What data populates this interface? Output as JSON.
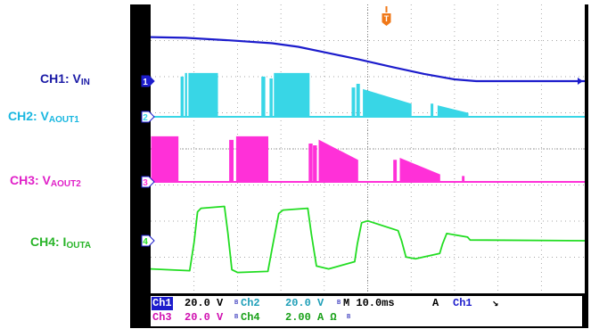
{
  "labels": [
    {
      "main": "CH1: V",
      "sub": "IN",
      "color": "#1a1aa6"
    },
    {
      "main": "CH2: V",
      "sub": "AOUT1",
      "color": "#19b7e0"
    },
    {
      "main": "CH3: V",
      "sub": "AOUT2",
      "color": "#e020c8"
    },
    {
      "main": "CH4: I",
      "sub": "OUTA",
      "color": "#28b428"
    }
  ],
  "status": {
    "ch1": "Ch1",
    "ch1_scale": "20.0 V",
    "ch2": "Ch2",
    "ch2_scale": "20.0 V",
    "ch3": "Ch3",
    "ch3_scale": "20.0 V",
    "ch4": "Ch4",
    "ch4_scale": "2.00 A Ω",
    "bw_mark": "B",
    "timebase": "M 10.0ms",
    "trigger_mode": "A",
    "trigger_source": "Ch1",
    "trigger_slope": "↘"
  },
  "chart_data": {
    "type": "line",
    "x_unit": "ms",
    "x_range": [
      0,
      100
    ],
    "time_per_div_ms": 10,
    "divisions": {
      "x": 10,
      "y": 8
    },
    "grid": true,
    "trigger_marker": "T",
    "colors": {
      "ch1": "#1c1ccc",
      "ch2": "#38d6e6",
      "ch3": "#ff30d8",
      "ch4": "#22dd22"
    },
    "series": [
      {
        "name": "CH1",
        "marker": "1",
        "volts_per_div": 20,
        "points": [
          [
            0,
            1.22
          ],
          [
            8,
            1.2
          ],
          [
            18,
            1.13
          ],
          [
            28,
            1.05
          ],
          [
            34,
            0.95
          ],
          [
            40,
            0.8
          ],
          [
            48,
            0.6
          ],
          [
            56,
            0.38
          ],
          [
            63,
            0.2
          ],
          [
            70,
            0.05
          ],
          [
            75,
            0
          ],
          [
            100,
            0
          ]
        ]
      },
      {
        "name": "CH2",
        "marker": "2",
        "volts_per_div": 20,
        "pulses": [
          [
            7,
            7.5,
            1.1
          ],
          [
            8,
            8.3,
            1.2
          ],
          [
            8.8,
            15.4,
            1.2
          ],
          [
            25.6,
            26.3,
            1.1
          ],
          [
            27.5,
            28.0,
            1.05
          ],
          [
            28.5,
            36.5,
            1.2
          ],
          [
            46.4,
            47.0,
            0.8
          ],
          [
            47.5,
            48.1,
            0.9
          ],
          [
            49.0,
            60.0,
            0.75,
            0.35
          ],
          [
            64.6,
            65.0,
            0.35
          ],
          [
            66.2,
            73.1,
            0.3,
            0.1
          ]
        ]
      },
      {
        "name": "CH3",
        "marker": "3",
        "volts_per_div": 20,
        "pulses": [
          [
            0.2,
            6.3,
            1.25
          ],
          [
            18.2,
            19.0,
            1.15
          ],
          [
            19.8,
            27.0,
            1.25
          ],
          [
            36.5,
            37.2,
            1.05
          ],
          [
            37.5,
            38.2,
            1.0
          ],
          [
            38.8,
            47.7,
            1.15,
            0.6
          ],
          [
            56.0,
            56.6,
            0.6
          ],
          [
            57.5,
            66.6,
            0.65,
            0.2
          ],
          [
            71.8,
            72.2,
            0.15
          ]
        ]
      },
      {
        "name": "CH4",
        "marker": "4",
        "amps_per_div": 2,
        "points": [
          [
            0,
            -0.78
          ],
          [
            9,
            -0.83
          ],
          [
            10,
            -0.05
          ],
          [
            10.8,
            0.8
          ],
          [
            11.6,
            0.9
          ],
          [
            17,
            0.95
          ],
          [
            17.8,
            0.2
          ],
          [
            18.7,
            -0.8
          ],
          [
            20,
            -0.88
          ],
          [
            27,
            -0.85
          ],
          [
            28,
            -0.2
          ],
          [
            29.5,
            0.75
          ],
          [
            30.5,
            0.85
          ],
          [
            36.2,
            0.9
          ],
          [
            37,
            0.2
          ],
          [
            38.2,
            -0.7
          ],
          [
            41,
            -0.78
          ],
          [
            47,
            -0.58
          ],
          [
            47.6,
            -0.1
          ],
          [
            48.6,
            0.5
          ],
          [
            50,
            0.55
          ],
          [
            57,
            0.28
          ],
          [
            57.8,
            0
          ],
          [
            58.8,
            -0.45
          ],
          [
            61,
            -0.5
          ],
          [
            66.6,
            -0.35
          ],
          [
            67.2,
            -0.1
          ],
          [
            68.2,
            0.2
          ],
          [
            73,
            0.1
          ],
          [
            73.6,
            0.02
          ],
          [
            100,
            0
          ]
        ]
      }
    ]
  }
}
